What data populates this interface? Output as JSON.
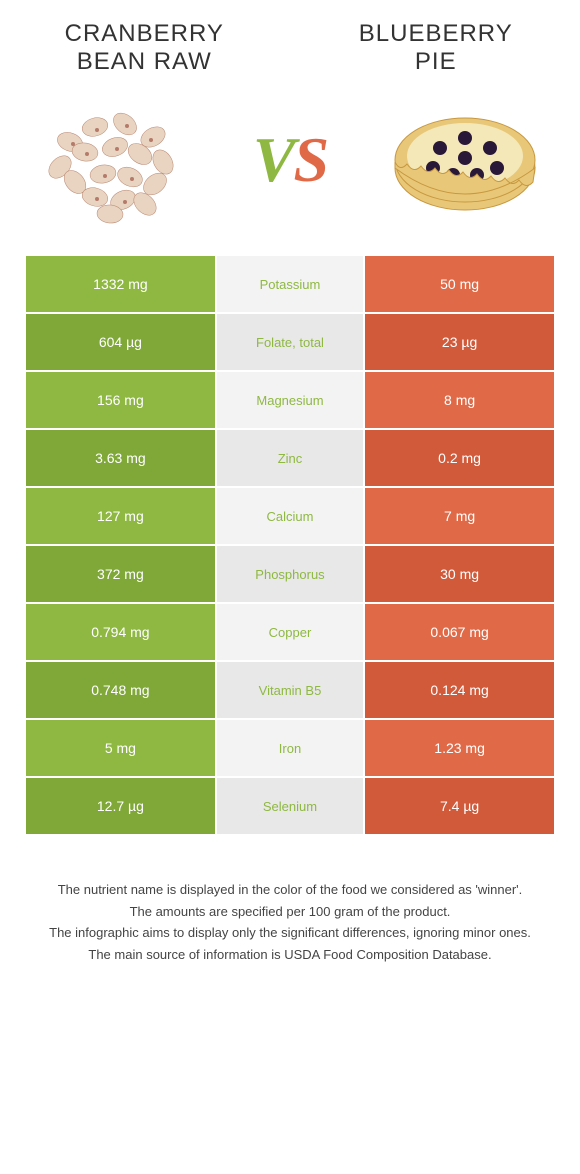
{
  "header": {
    "left_title_line1": "CRANBERRY",
    "left_title_line2": "BEAN RAW",
    "right_title_line1": "BLUEBERRY",
    "right_title_line2": "PIE",
    "vs_v": "V",
    "vs_s": "S"
  },
  "colors": {
    "green_main": "#8fb843",
    "green_alt": "#7fa838",
    "orange_main": "#e06a47",
    "orange_alt": "#d05a3a",
    "mid_main": "#f3f3f3",
    "mid_alt": "#e8e8e8",
    "text_white": "#ffffff",
    "nutrient_green": "#8fb843",
    "nutrient_orange": "#e06a47"
  },
  "rows": [
    {
      "left": "1332 mg",
      "nutrient": "Potassium",
      "right": "50 mg",
      "winner": "left"
    },
    {
      "left": "604 µg",
      "nutrient": "Folate, total",
      "right": "23 µg",
      "winner": "left"
    },
    {
      "left": "156 mg",
      "nutrient": "Magnesium",
      "right": "8 mg",
      "winner": "left"
    },
    {
      "left": "3.63 mg",
      "nutrient": "Zinc",
      "right": "0.2 mg",
      "winner": "left"
    },
    {
      "left": "127 mg",
      "nutrient": "Calcium",
      "right": "7 mg",
      "winner": "left"
    },
    {
      "left": "372 mg",
      "nutrient": "Phosphorus",
      "right": "30 mg",
      "winner": "left"
    },
    {
      "left": "0.794 mg",
      "nutrient": "Copper",
      "right": "0.067 mg",
      "winner": "left"
    },
    {
      "left": "0.748 mg",
      "nutrient": "Vitamin B5",
      "right": "0.124 mg",
      "winner": "left"
    },
    {
      "left": "5 mg",
      "nutrient": "Iron",
      "right": "1.23 mg",
      "winner": "left"
    },
    {
      "left": "12.7 µg",
      "nutrient": "Selenium",
      "right": "7.4 µg",
      "winner": "left"
    }
  ],
  "footer": {
    "line1": "The nutrient name is displayed in the color of the food we considered as 'winner'.",
    "line2": "The amounts are specified per 100 gram of the product.",
    "line3": "The infographic aims to display only the significant differences, ignoring minor ones.",
    "line4": "The main source of information is USDA Food Composition Database."
  }
}
